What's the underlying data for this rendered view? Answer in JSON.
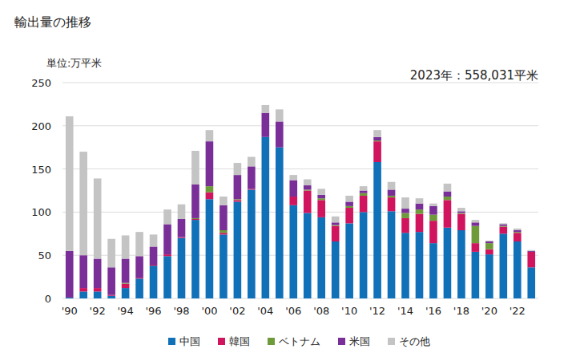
{
  "chart_data": {
    "type": "bar",
    "stacked": true,
    "title": "輸出量の推移",
    "y_label": "単位:万平米",
    "annotation": "2023年：558,031平米",
    "categories": [
      "'90",
      null,
      "'92",
      null,
      "'94",
      null,
      "'96",
      null,
      "'98",
      null,
      "'00",
      null,
      "'02",
      null,
      "'04",
      null,
      "'06",
      null,
      "'08",
      null,
      "'10",
      null,
      "'12",
      null,
      "'14",
      null,
      "'16",
      null,
      "'18",
      null,
      "'20",
      null,
      "'22",
      null
    ],
    "ylim": [
      0,
      250
    ],
    "yticks": [
      0,
      50,
      100,
      150,
      200,
      250
    ],
    "grid": true,
    "legend": "bottom",
    "series": [
      {
        "name": "中国",
        "color": "#1070b8",
        "values": [
          1,
          8,
          8,
          3,
          12,
          23,
          38,
          49,
          70,
          91,
          115,
          74,
          112,
          126,
          187,
          175,
          108,
          99,
          94,
          66,
          87,
          100,
          158,
          101,
          76,
          77,
          64,
          82,
          79,
          54,
          51,
          75,
          66,
          36
        ]
      },
      {
        "name": "韓国",
        "color": "#d0145e",
        "values": [
          0,
          4,
          4,
          1,
          5,
          1,
          1,
          2,
          1,
          1,
          8,
          2,
          2,
          1,
          0,
          0,
          10,
          26,
          20,
          18,
          18,
          19,
          24,
          16,
          17,
          21,
          26,
          32,
          19,
          10,
          6,
          8,
          10,
          18
        ]
      },
      {
        "name": "ベトナム",
        "color": "#6e9a3a",
        "values": [
          0,
          0,
          0,
          0,
          1,
          0,
          0,
          0,
          0,
          1,
          7,
          3,
          1,
          0,
          0,
          0,
          0,
          1,
          2,
          1,
          2,
          3,
          1,
          2,
          6,
          5,
          7,
          4,
          1,
          20,
          7,
          1,
          1,
          0
        ]
      },
      {
        "name": "米国",
        "color": "#7a2f98",
        "values": [
          54,
          38,
          34,
          32,
          28,
          25,
          21,
          35,
          21,
          39,
          52,
          29,
          28,
          26,
          28,
          30,
          19,
          5,
          4,
          3,
          5,
          3,
          4,
          7,
          5,
          7,
          10,
          6,
          2,
          4,
          2,
          2,
          2,
          1
        ]
      },
      {
        "name": "その他",
        "color": "#c4c4c4",
        "values": [
          156,
          120,
          93,
          33,
          27,
          28,
          14,
          17,
          17,
          39,
          13,
          10,
          14,
          11,
          9,
          14,
          6,
          7,
          7,
          7,
          7,
          5,
          8,
          9,
          13,
          6,
          3,
          9,
          4,
          3,
          1,
          1,
          2,
          1
        ]
      }
    ]
  }
}
